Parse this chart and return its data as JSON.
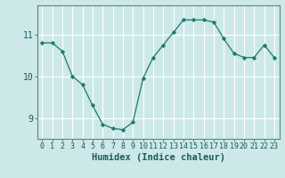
{
  "x": [
    0,
    1,
    2,
    3,
    4,
    5,
    6,
    7,
    8,
    9,
    10,
    11,
    12,
    13,
    14,
    15,
    16,
    17,
    18,
    19,
    20,
    21,
    22,
    23
  ],
  "y": [
    10.8,
    10.8,
    10.6,
    10.0,
    9.8,
    9.3,
    8.85,
    8.75,
    8.72,
    8.9,
    9.95,
    10.45,
    10.75,
    11.05,
    11.35,
    11.35,
    11.35,
    11.3,
    10.9,
    10.55,
    10.45,
    10.45,
    10.75,
    10.45
  ],
  "xlabel": "Humidex (Indice chaleur)",
  "ylim": [
    8.5,
    11.7
  ],
  "yticks": [
    9,
    10,
    11
  ],
  "xticks": [
    0,
    1,
    2,
    3,
    4,
    5,
    6,
    7,
    8,
    9,
    10,
    11,
    12,
    13,
    14,
    15,
    16,
    17,
    18,
    19,
    20,
    21,
    22,
    23
  ],
  "line_color": "#1a7a6e",
  "marker": "D",
  "marker_size": 2.2,
  "bg_color": "#cde8e8",
  "grid_color": "#ffffff",
  "axis_color": "#5a8a80",
  "tick_color": "#1a5a5a",
  "xlabel_fontsize": 7.5,
  "tick_fontsize": 6.0,
  "ytick_fontsize": 7.0
}
